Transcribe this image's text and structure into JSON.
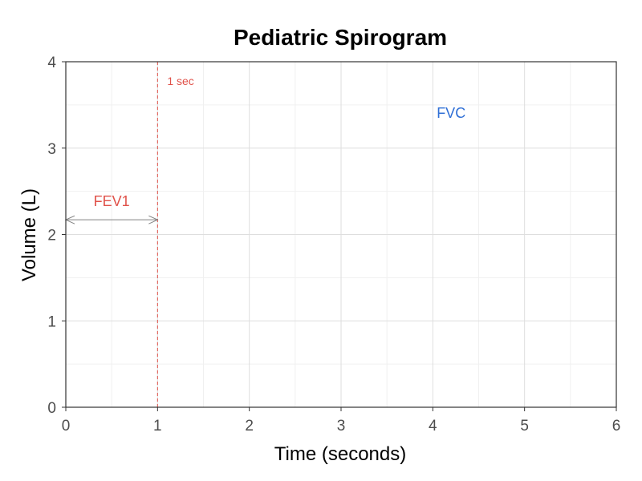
{
  "chart_data": {
    "type": "line",
    "title": "Pediatric Spirogram",
    "xlabel": "Time (seconds)",
    "ylabel": "Volume (L)",
    "xlim": [
      0,
      6
    ],
    "ylim": [
      0,
      4
    ],
    "x_ticks": [
      0,
      1,
      2,
      3,
      4,
      5,
      6
    ],
    "y_ticks": [
      0,
      1,
      2,
      3,
      4
    ],
    "grid": true,
    "series": [],
    "reference_lines": [
      {
        "axis": "x",
        "value": 1,
        "label": "1 sec",
        "color": "#e0524a",
        "style": "dashed"
      }
    ],
    "annotations": [
      {
        "text": "FEV1",
        "x": 0.5,
        "y": 2.33,
        "color": "#e0524a"
      },
      {
        "text": "FVC",
        "x": 4.2,
        "y": 3.35,
        "color": "#2f6fd6"
      }
    ],
    "arrows": [
      {
        "from": [
          0,
          2.17
        ],
        "to": [
          1,
          2.17
        ],
        "color": "#808080",
        "ends": "both"
      }
    ]
  }
}
